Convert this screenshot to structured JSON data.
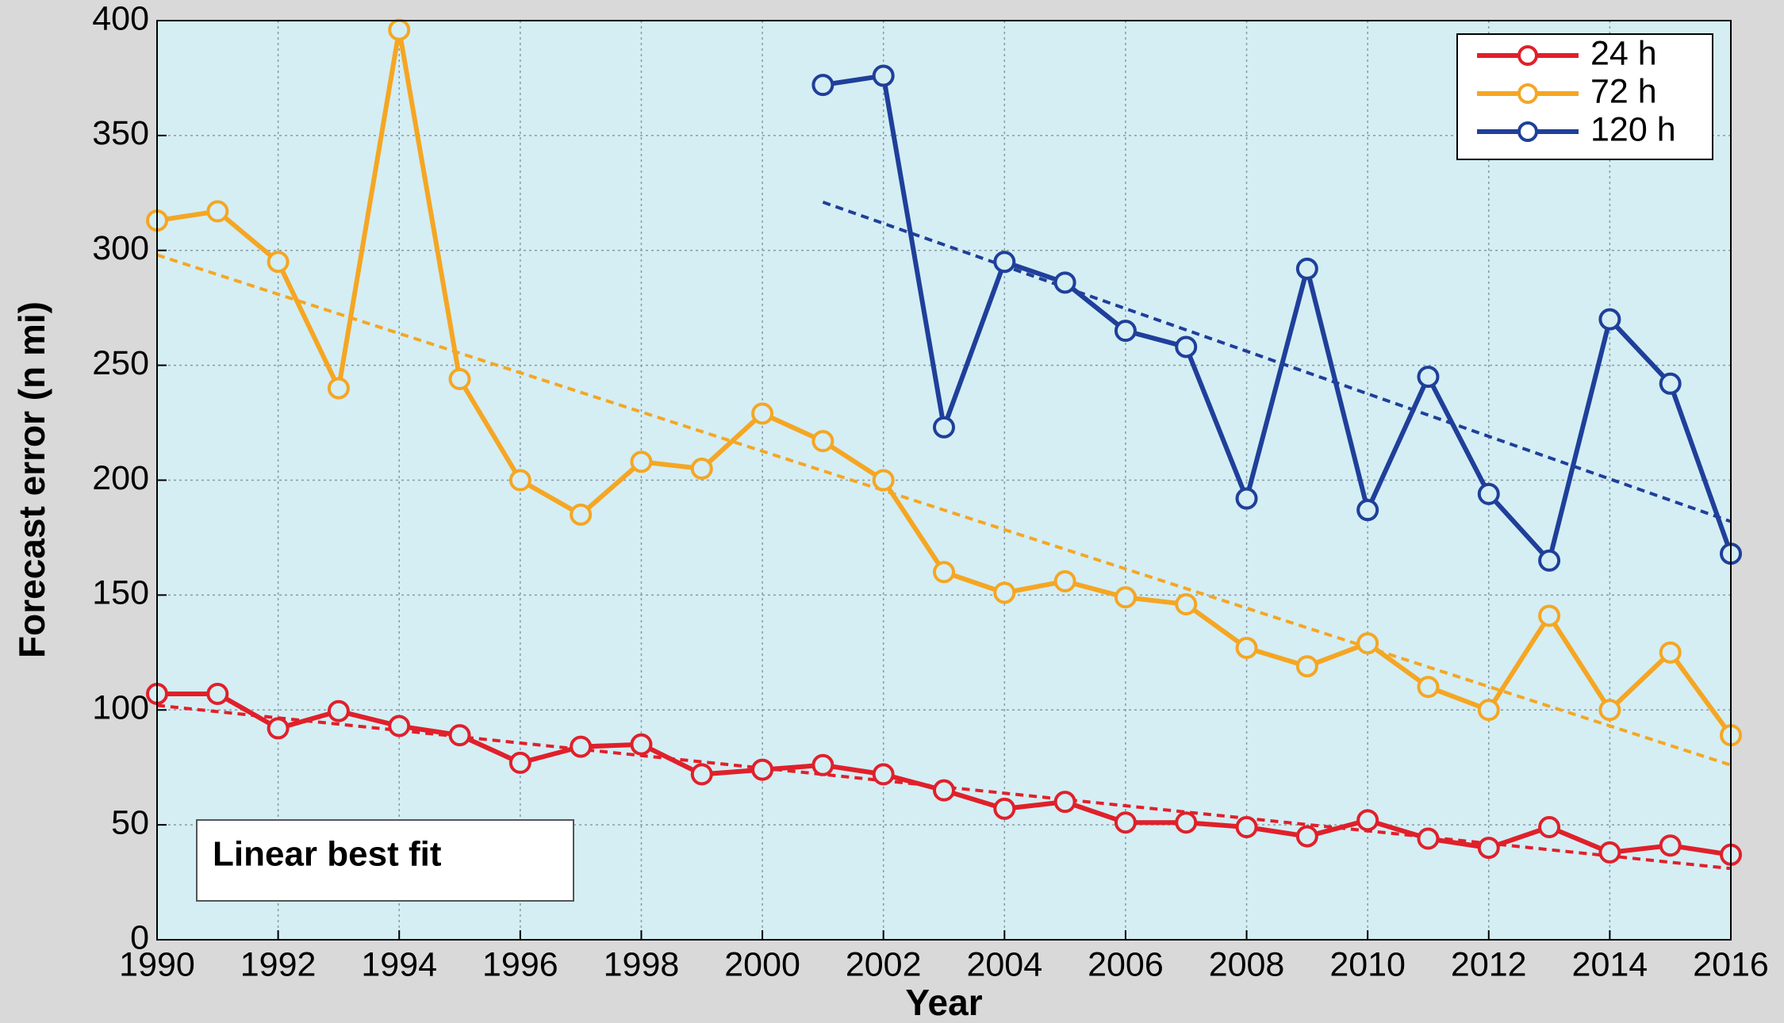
{
  "chart_data": {
    "type": "line",
    "xlabel": "Year",
    "ylabel": "Forecast error (n mi)",
    "annotation": "Linear best fit",
    "x": [
      1990,
      1991,
      1992,
      1993,
      1994,
      1995,
      1996,
      1997,
      1998,
      1999,
      2000,
      2001,
      2002,
      2003,
      2004,
      2005,
      2006,
      2007,
      2008,
      2009,
      2010,
      2011,
      2012,
      2013,
      2014,
      2015,
      2016
    ],
    "series": [
      {
        "name": "24 h",
        "color": "#e0202a",
        "values": [
          107,
          107,
          92,
          99.5,
          93,
          89,
          77,
          84,
          85,
          72,
          74,
          76,
          72,
          65,
          57,
          60,
          51,
          51,
          49,
          45,
          52,
          44,
          40,
          49,
          38,
          41,
          37
        ]
      },
      {
        "name": "72 h",
        "color": "#f5a623",
        "values": [
          313,
          317,
          295,
          240,
          396,
          244,
          200,
          185,
          208,
          205,
          229,
          217,
          200,
          160,
          151,
          156,
          149,
          146,
          127,
          119,
          129,
          110,
          100,
          141,
          100,
          125,
          89
        ]
      },
      {
        "name": "120 h",
        "color": "#1f3f9a",
        "values": [
          null,
          null,
          null,
          null,
          null,
          null,
          null,
          null,
          null,
          null,
          null,
          372,
          376,
          223,
          295,
          286,
          265,
          258,
          192,
          292,
          187,
          245,
          194,
          165,
          270,
          242,
          168
        ]
      }
    ],
    "trendlines": [
      {
        "color": "#e0202a",
        "x": [
          1990,
          2016
        ],
        "values": [
          102,
          31
        ]
      },
      {
        "color": "#f5a623",
        "x": [
          1990,
          2016
        ],
        "values": [
          298,
          76
        ]
      },
      {
        "color": "#1f3f9a",
        "x": [
          2001,
          2016
        ],
        "values": [
          321,
          182
        ]
      }
    ],
    "xlim": [
      1990,
      2016
    ],
    "xticks": [
      1990,
      1992,
      1994,
      1996,
      1998,
      2000,
      2002,
      2004,
      2006,
      2008,
      2010,
      2012,
      2014,
      2016
    ],
    "ylim": [
      0,
      400
    ],
    "yticks": [
      0,
      50,
      100,
      150,
      200,
      250,
      300,
      350,
      400
    ],
    "grid": true,
    "legend": "upper right"
  }
}
